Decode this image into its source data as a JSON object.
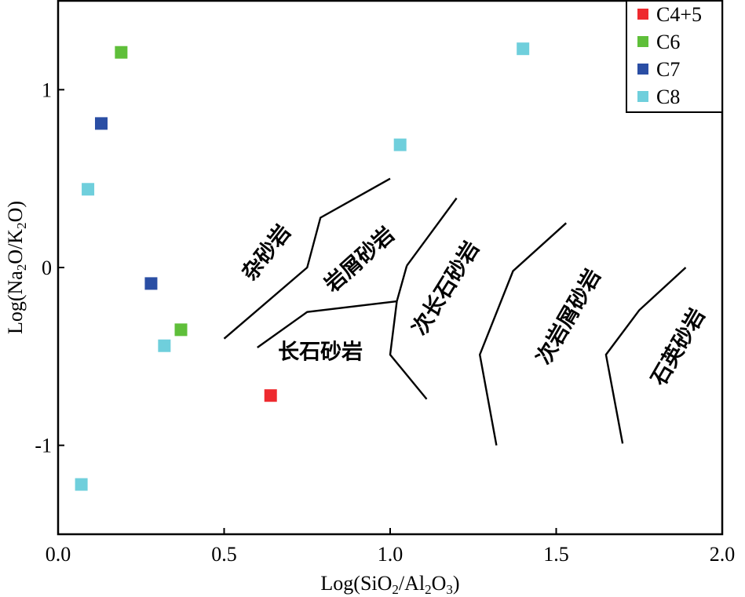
{
  "chart_data": {
    "type": "scatter",
    "xlabel_parts": [
      {
        "t": "Log(SiO",
        "sub": false
      },
      {
        "t": "2",
        "sub": true
      },
      {
        "t": "/Al",
        "sub": false
      },
      {
        "t": "2",
        "sub": true
      },
      {
        "t": "O",
        "sub": false
      },
      {
        "t": "3",
        "sub": true
      },
      {
        "t": ")",
        "sub": false
      }
    ],
    "ylabel_parts": [
      {
        "t": "Log(Na",
        "sub": false
      },
      {
        "t": "2",
        "sub": true
      },
      {
        "t": "O/K",
        "sub": false
      },
      {
        "t": "2",
        "sub": true
      },
      {
        "t": "O)",
        "sub": false
      }
    ],
    "xlim": [
      0.0,
      2.0
    ],
    "ylim": [
      -1.5,
      1.5
    ],
    "xticks": [
      {
        "value": 0.0,
        "label": "0.0"
      },
      {
        "value": 0.5,
        "label": "0.5"
      },
      {
        "value": 1.0,
        "label": "1.0"
      },
      {
        "value": 1.5,
        "label": "1.5"
      },
      {
        "value": 2.0,
        "label": "2.0"
      }
    ],
    "yticks": [
      {
        "value": 1,
        "label": "1"
      },
      {
        "value": 0,
        "label": "0"
      },
      {
        "value": -1,
        "label": "-1"
      }
    ],
    "grid": false,
    "legend_position": "top-right",
    "series": [
      {
        "name": "C4+5",
        "color": "#ee2a2f",
        "points": [
          [
            0.64,
            -0.72
          ]
        ]
      },
      {
        "name": "C6",
        "color": "#5fbf3a",
        "points": [
          [
            0.19,
            1.21
          ],
          [
            0.37,
            -0.35
          ]
        ]
      },
      {
        "name": "C7",
        "color": "#2a4ea4",
        "points": [
          [
            0.13,
            0.81
          ],
          [
            0.28,
            -0.09
          ]
        ]
      },
      {
        "name": "C8",
        "color": "#6fcfdc",
        "points": [
          [
            1.4,
            1.23
          ],
          [
            1.03,
            0.69
          ],
          [
            0.09,
            0.44
          ],
          [
            0.32,
            -0.44
          ],
          [
            0.07,
            -1.22
          ]
        ]
      }
    ],
    "boundaries": [
      {
        "points": [
          [
            0.5,
            -0.4
          ],
          [
            0.75,
            0.0
          ],
          [
            0.79,
            0.28
          ],
          [
            1.0,
            0.5
          ]
        ]
      },
      {
        "points": [
          [
            0.6,
            -0.45
          ],
          [
            0.75,
            -0.25
          ],
          [
            1.02,
            -0.19
          ]
        ]
      },
      {
        "points": [
          [
            1.05,
            0.01
          ],
          [
            1.2,
            0.39
          ]
        ]
      },
      {
        "points": [
          [
            1.02,
            -0.19
          ],
          [
            1.05,
            0.01
          ]
        ]
      },
      {
        "points": [
          [
            1.02,
            -0.19
          ],
          [
            1.0,
            -0.49
          ],
          [
            1.11,
            -0.74
          ]
        ]
      },
      {
        "points": [
          [
            1.53,
            0.25
          ],
          [
            1.37,
            -0.02
          ],
          [
            1.27,
            -0.49
          ],
          [
            1.32,
            -1.0
          ]
        ]
      },
      {
        "points": [
          [
            1.89,
            0.0
          ],
          [
            1.75,
            -0.24
          ],
          [
            1.65,
            -0.49
          ],
          [
            1.7,
            -0.99
          ]
        ]
      }
    ],
    "field_labels": [
      {
        "text": "杂砂岩",
        "x": 0.63,
        "y": 0.08,
        "rotate": -52
      },
      {
        "text": "岩屑砂岩",
        "x": 0.91,
        "y": 0.04,
        "rotate": -42
      },
      {
        "text": "长石砂岩",
        "x": 0.79,
        "y": -0.48,
        "rotate": 0
      },
      {
        "text": "次长石砂岩",
        "x": 1.17,
        "y": -0.12,
        "rotate": -58
      },
      {
        "text": "次岩屑砂岩",
        "x": 1.54,
        "y": -0.28,
        "rotate": -60
      },
      {
        "text": "石英砂岩",
        "x": 1.87,
        "y": -0.45,
        "rotate": -60
      }
    ]
  }
}
